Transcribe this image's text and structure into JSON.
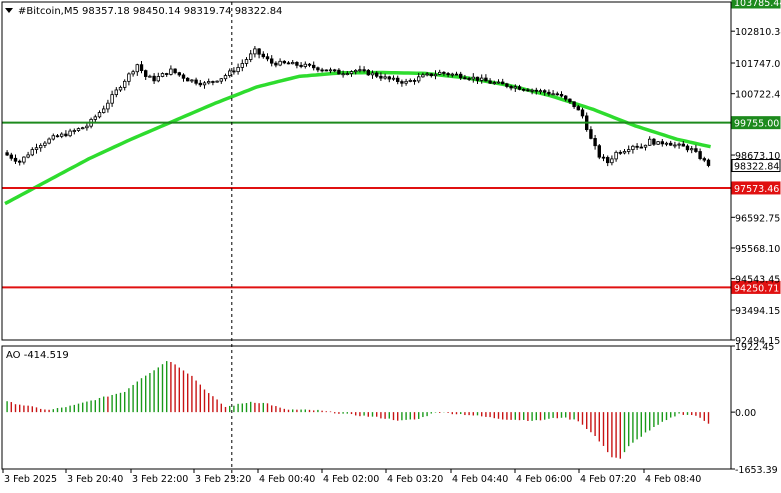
{
  "header": {
    "symbol_line": "#Bitcoin,M5  98357.18 98450.14 98319.74 98322.84",
    "ao_line": "AO -414.519"
  },
  "colors": {
    "background": "#ffffff",
    "frame": "#000000",
    "grid": "#c8c8c8",
    "bull_candle": "#000000",
    "bear_candle": "#000000",
    "moving_average": "#2edc2e",
    "resistance_line": "#1d8a1d",
    "support_line": "#e01010",
    "ao_up": "#1a9a1a",
    "ao_down": "#c81414",
    "crosshair": "#000000"
  },
  "chart_data": [
    {
      "type": "candlestick",
      "name": "price",
      "symbol": "#Bitcoin",
      "timeframe": "M5",
      "ohlc_last": {
        "open": 98357.18,
        "high": 98450.14,
        "low": 98319.74,
        "close": 98322.84
      },
      "ylim": [
        92494.15,
        103785.44
      ],
      "y_ticks": [
        "102810.34",
        "101747.05",
        "100722.40",
        "98673.10",
        "96592.75",
        "95568.10",
        "94543.45",
        "93494.15",
        "92494.15"
      ],
      "x_ticks": [
        "3 Feb 2025",
        "3 Feb 20:40",
        "3 Feb 22:00",
        "3 Feb 23:20",
        "4 Feb 00:40",
        "4 Feb 02:00",
        "4 Feb 03:20",
        "4 Feb 04:40",
        "4 Feb 06:00",
        "4 Feb 07:20",
        "4 Feb 08:40"
      ],
      "close_path": [
        [
          0,
          98750
        ],
        [
          4,
          98450
        ],
        [
          8,
          98980
        ],
        [
          12,
          99250
        ],
        [
          16,
          99420
        ],
        [
          20,
          99650
        ],
        [
          24,
          100250
        ],
        [
          28,
          101000
        ],
        [
          32,
          101700
        ],
        [
          34,
          101300
        ],
        [
          36,
          101200
        ],
        [
          40,
          101500
        ],
        [
          44,
          101200
        ],
        [
          48,
          101050
        ],
        [
          52,
          101250
        ],
        [
          56,
          101600
        ],
        [
          60,
          102150
        ],
        [
          64,
          101750
        ],
        [
          68,
          101720
        ],
        [
          72,
          101650
        ],
        [
          76,
          101550
        ],
        [
          80,
          101420
        ],
        [
          84,
          101500
        ],
        [
          88,
          101380
        ],
        [
          92,
          101200
        ],
        [
          96,
          101100
        ],
        [
          100,
          101300
        ],
        [
          104,
          101420
        ],
        [
          108,
          101350
        ],
        [
          112,
          101250
        ],
        [
          116,
          101100
        ],
        [
          120,
          101000
        ],
        [
          124,
          100900
        ],
        [
          128,
          100800
        ],
        [
          132,
          100700
        ],
        [
          136,
          100320
        ],
        [
          138,
          99980
        ],
        [
          140,
          99200
        ],
        [
          142,
          98640
        ],
        [
          144,
          98430
        ],
        [
          146,
          98750
        ],
        [
          148,
          98850
        ],
        [
          150,
          99000
        ],
        [
          152,
          98950
        ],
        [
          154,
          99150
        ],
        [
          156,
          99050
        ],
        [
          158,
          99120
        ],
        [
          160,
          99000
        ],
        [
          162,
          98950
        ],
        [
          164,
          98850
        ],
        [
          166,
          98600
        ],
        [
          168,
          98322.84
        ]
      ],
      "moving_average": [
        [
          0,
          97050
        ],
        [
          10,
          97800
        ],
        [
          20,
          98550
        ],
        [
          30,
          99200
        ],
        [
          40,
          99800
        ],
        [
          50,
          100400
        ],
        [
          60,
          100950
        ],
        [
          70,
          101300
        ],
        [
          80,
          101420
        ],
        [
          90,
          101430
        ],
        [
          100,
          101400
        ],
        [
          110,
          101250
        ],
        [
          120,
          101000
        ],
        [
          130,
          100650
        ],
        [
          140,
          100200
        ],
        [
          150,
          99650
        ],
        [
          160,
          99200
        ],
        [
          168,
          98950
        ]
      ],
      "levels": [
        {
          "value": 103785.44,
          "label": "103785.44",
          "kind": "resistance"
        },
        {
          "value": 99755.0,
          "label": "99755.00",
          "kind": "resistance"
        },
        {
          "value": 98322.84,
          "label": "98322.84",
          "kind": "current"
        },
        {
          "value": 97573.46,
          "label": "97573.46",
          "kind": "support"
        },
        {
          "value": 94250.71,
          "label": "94250.71",
          "kind": "support"
        }
      ],
      "crosshair_index": 54
    },
    {
      "type": "bar",
      "name": "AO",
      "title": "AO -414.519",
      "ylim": [
        -1653.39,
        1922.45
      ],
      "y_ticks": [
        "1922.45",
        "0.00",
        "-1653.39"
      ],
      "bar_count": 168,
      "shape": [
        [
          0,
          300
        ],
        [
          6,
          150
        ],
        [
          10,
          60
        ],
        [
          16,
          200
        ],
        [
          22,
          400
        ],
        [
          28,
          600
        ],
        [
          32,
          1000
        ],
        [
          36,
          1300
        ],
        [
          38,
          1500
        ],
        [
          40,
          1400
        ],
        [
          44,
          1050
        ],
        [
          48,
          550
        ],
        [
          52,
          150
        ],
        [
          56,
          250
        ],
        [
          58,
          300
        ],
        [
          62,
          250
        ],
        [
          66,
          80
        ],
        [
          74,
          50
        ],
        [
          80,
          -50
        ],
        [
          88,
          -150
        ],
        [
          94,
          -250
        ],
        [
          98,
          -200
        ],
        [
          102,
          0
        ],
        [
          110,
          -80
        ],
        [
          118,
          -200
        ],
        [
          126,
          -250
        ],
        [
          132,
          -150
        ],
        [
          136,
          -250
        ],
        [
          140,
          -700
        ],
        [
          142,
          -1000
        ],
        [
          144,
          -1300
        ],
        [
          146,
          -1350
        ],
        [
          148,
          -1000
        ],
        [
          152,
          -600
        ],
        [
          156,
          -300
        ],
        [
          160,
          -50
        ],
        [
          164,
          -100
        ],
        [
          168,
          -414.519
        ]
      ]
    }
  ]
}
